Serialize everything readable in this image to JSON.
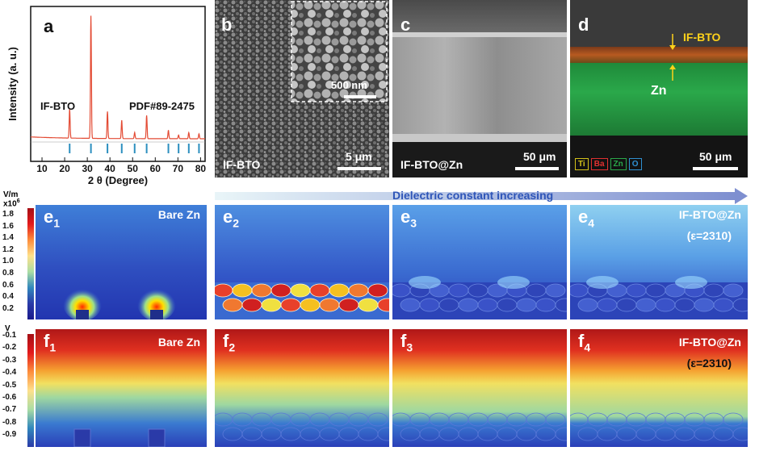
{
  "panel_a": {
    "label": "a",
    "ylabel": "Intensity (a. u.)",
    "xlabel": "2 θ (Degree)",
    "sample_label": "IF-BTO",
    "ref_label": "PDF#89-2475",
    "xticks": [
      "10",
      "20",
      "30",
      "40",
      "50",
      "60",
      "70",
      "80"
    ],
    "line_color": "#e34a33",
    "ref_color": "#2c8fbf"
  },
  "chart_data": {
    "type": "line",
    "title": "",
    "xlabel": "2 θ (Degree)",
    "ylabel": "Intensity (a. u.)",
    "xlim": [
      5,
      82
    ],
    "series": [
      {
        "name": "IF-BTO",
        "peaks": [
          [
            22.2,
            0.24
          ],
          [
            31.6,
            1.0
          ],
          [
            38.9,
            0.22
          ],
          [
            45.2,
            0.15
          ],
          [
            50.9,
            0.05
          ],
          [
            56.2,
            0.19
          ],
          [
            65.8,
            0.07
          ],
          [
            70.3,
            0.03
          ],
          [
            74.8,
            0.05
          ],
          [
            79.3,
            0.04
          ]
        ]
      }
    ],
    "reference": {
      "name": "PDF#89-2475",
      "positions": [
        22.2,
        31.6,
        38.9,
        45.2,
        50.9,
        56.2,
        65.8,
        70.3,
        74.8,
        79.3
      ]
    }
  },
  "panel_b": {
    "label": "b",
    "sample": "IF-BTO",
    "scale": "5 μm",
    "inset_scale": "500 nm"
  },
  "panel_c": {
    "label": "c",
    "sample": "IF-BTO@Zn",
    "scale": "50 μm"
  },
  "panel_d": {
    "label": "d",
    "layer1": "IF-BTO",
    "layer2": "Zn",
    "scale": "50 μm",
    "legend": [
      {
        "el": "Ti",
        "color": "#d4c21a"
      },
      {
        "el": "Ba",
        "color": "#e03030"
      },
      {
        "el": "Zn",
        "color": "#2aa84a"
      },
      {
        "el": "O",
        "color": "#2f8fd0"
      }
    ]
  },
  "arrow_text": "Dielectric constant increasing",
  "row_e": {
    "cbar_title": "V/m",
    "cbar_exp": "x10",
    "cbar_exp_sup": "6",
    "cbar_ticks": [
      "1.8",
      "1.6",
      "1.4",
      "1.2",
      "1.0",
      "0.8",
      "0.6",
      "0.4",
      "0.2"
    ],
    "panels": [
      {
        "label": "e",
        "sub": "1",
        "title": "Bare Zn",
        "title2": ""
      },
      {
        "label": "e",
        "sub": "2",
        "title": "",
        "title2": ""
      },
      {
        "label": "e",
        "sub": "3",
        "title": "",
        "title2": ""
      },
      {
        "label": "e",
        "sub": "4",
        "title": "IF-BTO@Zn",
        "title2": "(ε=2310)"
      }
    ]
  },
  "row_f": {
    "cbar_title": "V",
    "cbar_ticks": [
      "-0.1",
      "-0.2",
      "-0.3",
      "-0.4",
      "-0.5",
      "-0.6",
      "-0.7",
      "-0.8",
      "-0.9"
    ],
    "panels": [
      {
        "label": "f",
        "sub": "1",
        "title": "Bare Zn",
        "title2": ""
      },
      {
        "label": "f",
        "sub": "2",
        "title": "",
        "title2": ""
      },
      {
        "label": "f",
        "sub": "3",
        "title": "",
        "title2": ""
      },
      {
        "label": "f",
        "sub": "4",
        "title": "IF-BTO@Zn",
        "title2": "(ε=2310)"
      }
    ]
  }
}
